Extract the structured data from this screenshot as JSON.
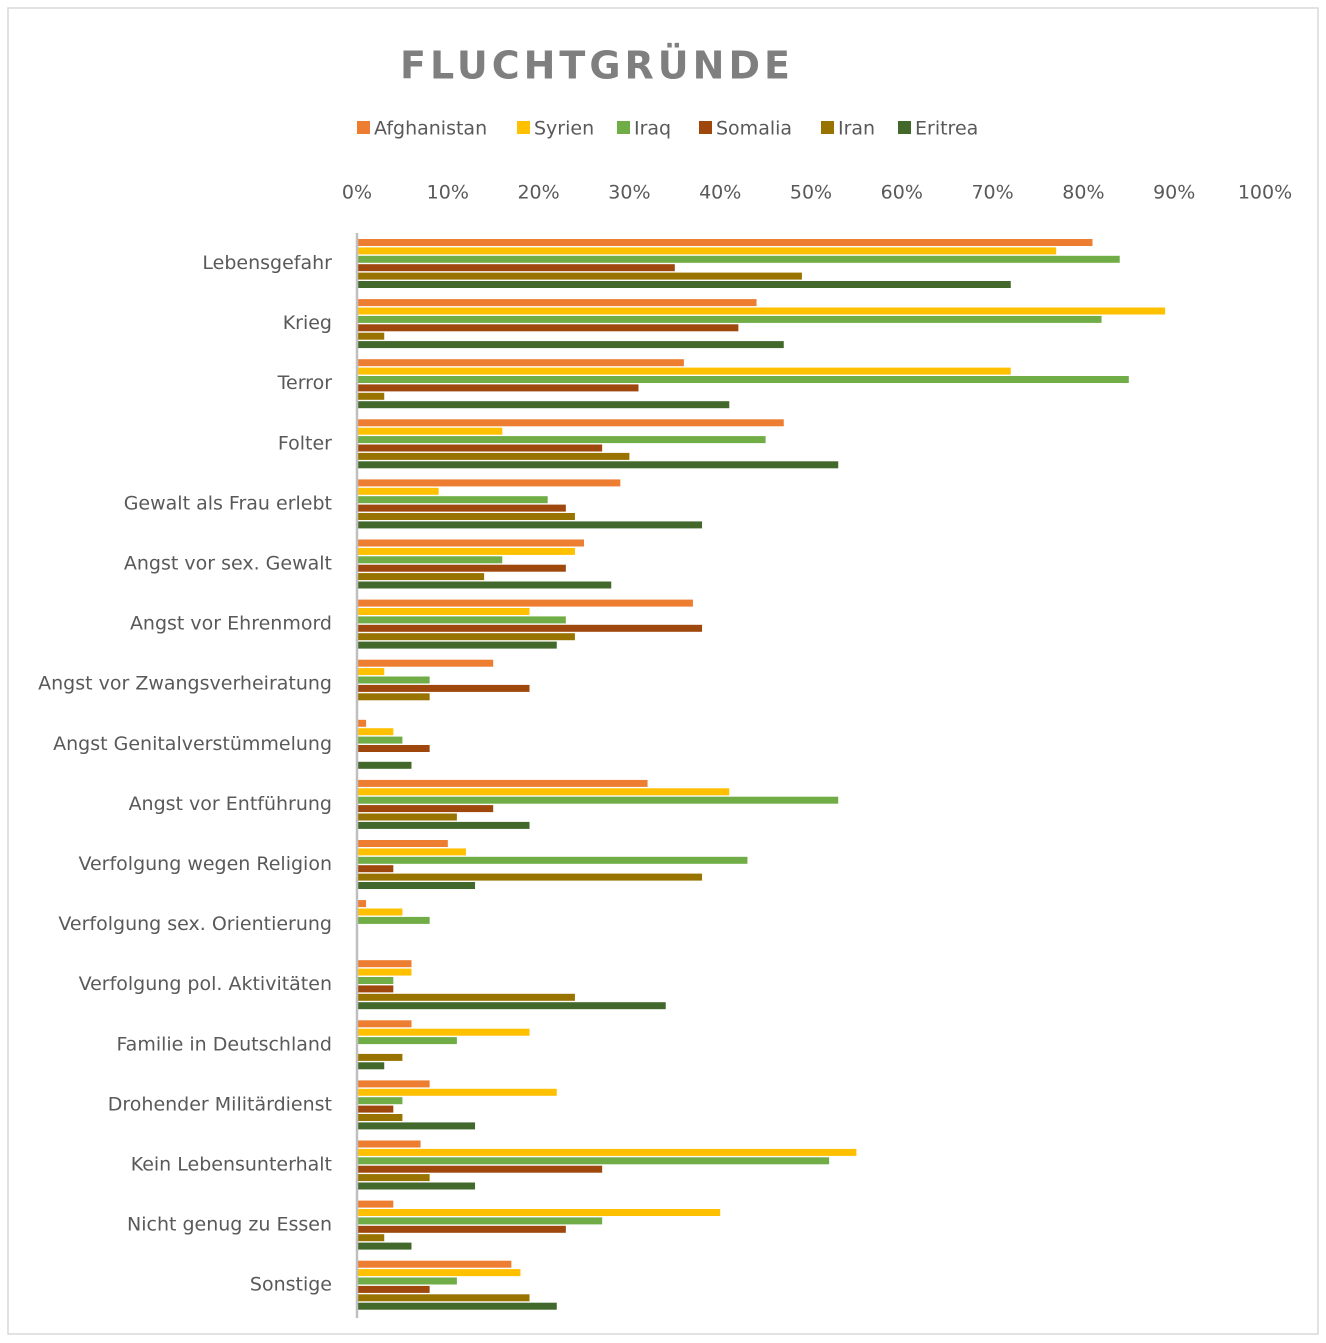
{
  "chart_data": {
    "type": "hbar",
    "title": "FLUCHTGRÜNDE",
    "categories": [
      "Lebensgefahr",
      "Krieg",
      "Terror",
      "Folter",
      "Gewalt als Frau erlebt",
      "Angst vor sex. Gewalt",
      "Angst vor Ehrenmord",
      "Angst vor Zwangsverheiratung",
      "Angst Genitalverstümmelung",
      "Angst vor Entführung",
      "Verfolgung wegen Religion",
      "Verfolgung sex. Orientierung",
      "Verfolgung pol. Aktivitäten",
      "Familie in Deutschland",
      "Drohender Militärdienst",
      "Kein Lebensunterhalt",
      "Nicht genug zu Essen",
      "Sonstige"
    ],
    "series": [
      {
        "name": "Afghanistan",
        "color": "#ed7d31",
        "values": [
          81,
          44,
          36,
          47,
          29,
          25,
          37,
          15,
          1,
          32,
          10,
          1,
          6,
          6,
          8,
          7,
          4,
          17
        ]
      },
      {
        "name": "Syrien",
        "color": "#ffc000",
        "values": [
          77,
          89,
          72,
          16,
          9,
          24,
          19,
          3,
          4,
          41,
          12,
          5,
          6,
          19,
          22,
          55,
          40,
          18
        ]
      },
      {
        "name": "Iraq",
        "color": "#70ad47",
        "values": [
          84,
          82,
          85,
          45,
          21,
          16,
          23,
          8,
          5,
          53,
          43,
          8,
          4,
          11,
          5,
          52,
          27,
          11
        ]
      },
      {
        "name": "Somalia",
        "color": "#9e480e",
        "values": [
          35,
          42,
          31,
          27,
          23,
          23,
          38,
          19,
          8,
          15,
          4,
          0,
          4,
          0,
          4,
          27,
          23,
          8
        ]
      },
      {
        "name": "Iran",
        "color": "#997300",
        "values": [
          49,
          3,
          3,
          30,
          24,
          14,
          24,
          8,
          0,
          11,
          38,
          0,
          24,
          5,
          5,
          8,
          3,
          19
        ]
      },
      {
        "name": "Eritrea",
        "color": "#43682b",
        "values": [
          72,
          47,
          41,
          53,
          38,
          28,
          22,
          0,
          6,
          19,
          13,
          0,
          34,
          3,
          13,
          13,
          6,
          22
        ]
      }
    ],
    "xlim": [
      0,
      100
    ],
    "xticks": [
      {
        "value": 0,
        "label": "0%"
      },
      {
        "value": 10,
        "label": "10%"
      },
      {
        "value": 20,
        "label": "20%"
      },
      {
        "value": 30,
        "label": "30%"
      },
      {
        "value": 40,
        "label": "40%"
      },
      {
        "value": 50,
        "label": "50%"
      },
      {
        "value": 60,
        "label": "60%"
      },
      {
        "value": 70,
        "label": "70%"
      },
      {
        "value": 80,
        "label": "80%"
      },
      {
        "value": 90,
        "label": "90%"
      },
      {
        "value": 100,
        "label": "100%"
      }
    ],
    "legend": "top",
    "grid": false
  }
}
